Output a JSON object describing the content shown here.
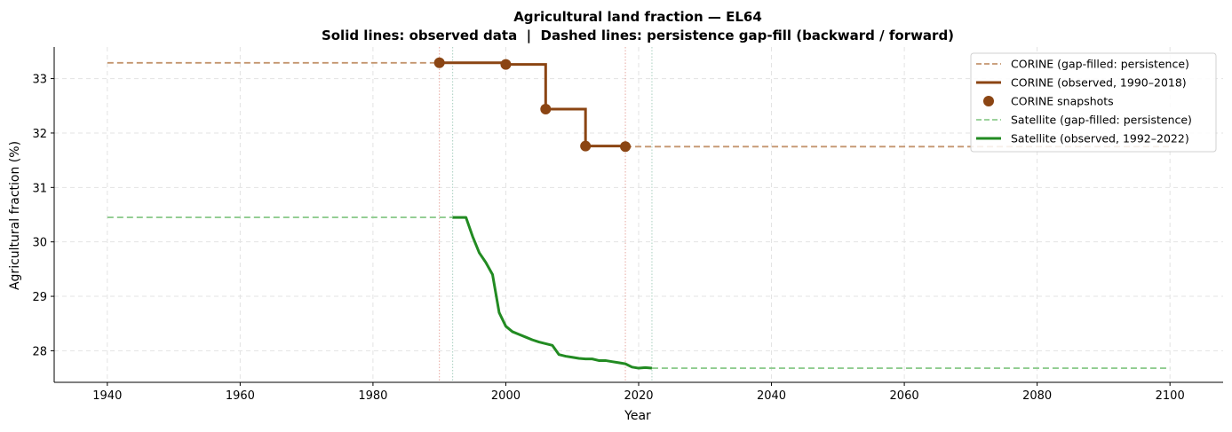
{
  "chart_data": {
    "type": "line",
    "title": "Agricultural land fraction — EL64",
    "subtitle": "Solid lines: observed data  |  Dashed lines: persistence gap-fill (backward / forward)",
    "xlabel": "Year",
    "ylabel": "Agricultural fraction (%)",
    "xlim": [
      1932,
      2108
    ],
    "ylim": [
      27.42,
      33.58
    ],
    "x_ticks": [
      1940,
      1960,
      1980,
      2000,
      2020,
      2040,
      2060,
      2080,
      2100
    ],
    "y_ticks": [
      28,
      29,
      30,
      31,
      32,
      33
    ],
    "grid": true,
    "legend_position": "top-right",
    "series": [
      {
        "name": "CORINE (gap-filled: persistence)",
        "style": "dashed",
        "color": "#c4956f",
        "segments": [
          {
            "x": [
              1940,
              1990
            ],
            "y": [
              33.29,
              33.29
            ]
          },
          {
            "x": [
              2018,
              2100
            ],
            "y": [
              31.75,
              31.75
            ]
          }
        ]
      },
      {
        "name": "CORINE (observed, 1990–2018)",
        "style": "solid-step",
        "color": "#8b4513",
        "x": [
          1990,
          2000,
          2006,
          2012,
          2018
        ],
        "y": [
          33.29,
          33.26,
          32.44,
          31.76,
          31.75
        ]
      },
      {
        "name": "CORINE snapshots",
        "style": "markers",
        "color": "#8b4513",
        "x": [
          1990,
          2000,
          2006,
          2012,
          2018
        ],
        "y": [
          33.29,
          33.26,
          32.44,
          31.76,
          31.75
        ]
      },
      {
        "name": "Satellite (gap-filled: persistence)",
        "style": "dashed",
        "color": "#8fcc8f",
        "segments": [
          {
            "x": [
              1940,
              1992
            ],
            "y": [
              30.45,
              30.45
            ]
          },
          {
            "x": [
              2022,
              2100
            ],
            "y": [
              27.68,
              27.68
            ]
          }
        ]
      },
      {
        "name": "Satellite (observed, 1992–2022)",
        "style": "solid",
        "color": "#228b22",
        "x": [
          1992,
          1993,
          1994,
          1995,
          1996,
          1997,
          1998,
          1999,
          2000,
          2001,
          2002,
          2003,
          2004,
          2005,
          2006,
          2007,
          2008,
          2009,
          2010,
          2011,
          2012,
          2013,
          2014,
          2015,
          2016,
          2017,
          2018,
          2019,
          2020,
          2021,
          2022
        ],
        "y": [
          30.45,
          30.45,
          30.45,
          30.1,
          29.8,
          29.62,
          29.4,
          28.7,
          28.45,
          28.35,
          28.3,
          28.25,
          28.2,
          28.16,
          28.13,
          28.1,
          27.93,
          27.9,
          27.88,
          27.86,
          27.85,
          27.85,
          27.82,
          27.82,
          27.8,
          27.78,
          27.76,
          27.7,
          27.68,
          27.69,
          27.68
        ]
      }
    ],
    "reference_lines": [
      {
        "x": 1990,
        "color": "#e8a8a0"
      },
      {
        "x": 2018,
        "color": "#e8a8a0"
      },
      {
        "x": 1992,
        "color": "#a8d0c0"
      },
      {
        "x": 2022,
        "color": "#a8d0c0"
      }
    ]
  }
}
